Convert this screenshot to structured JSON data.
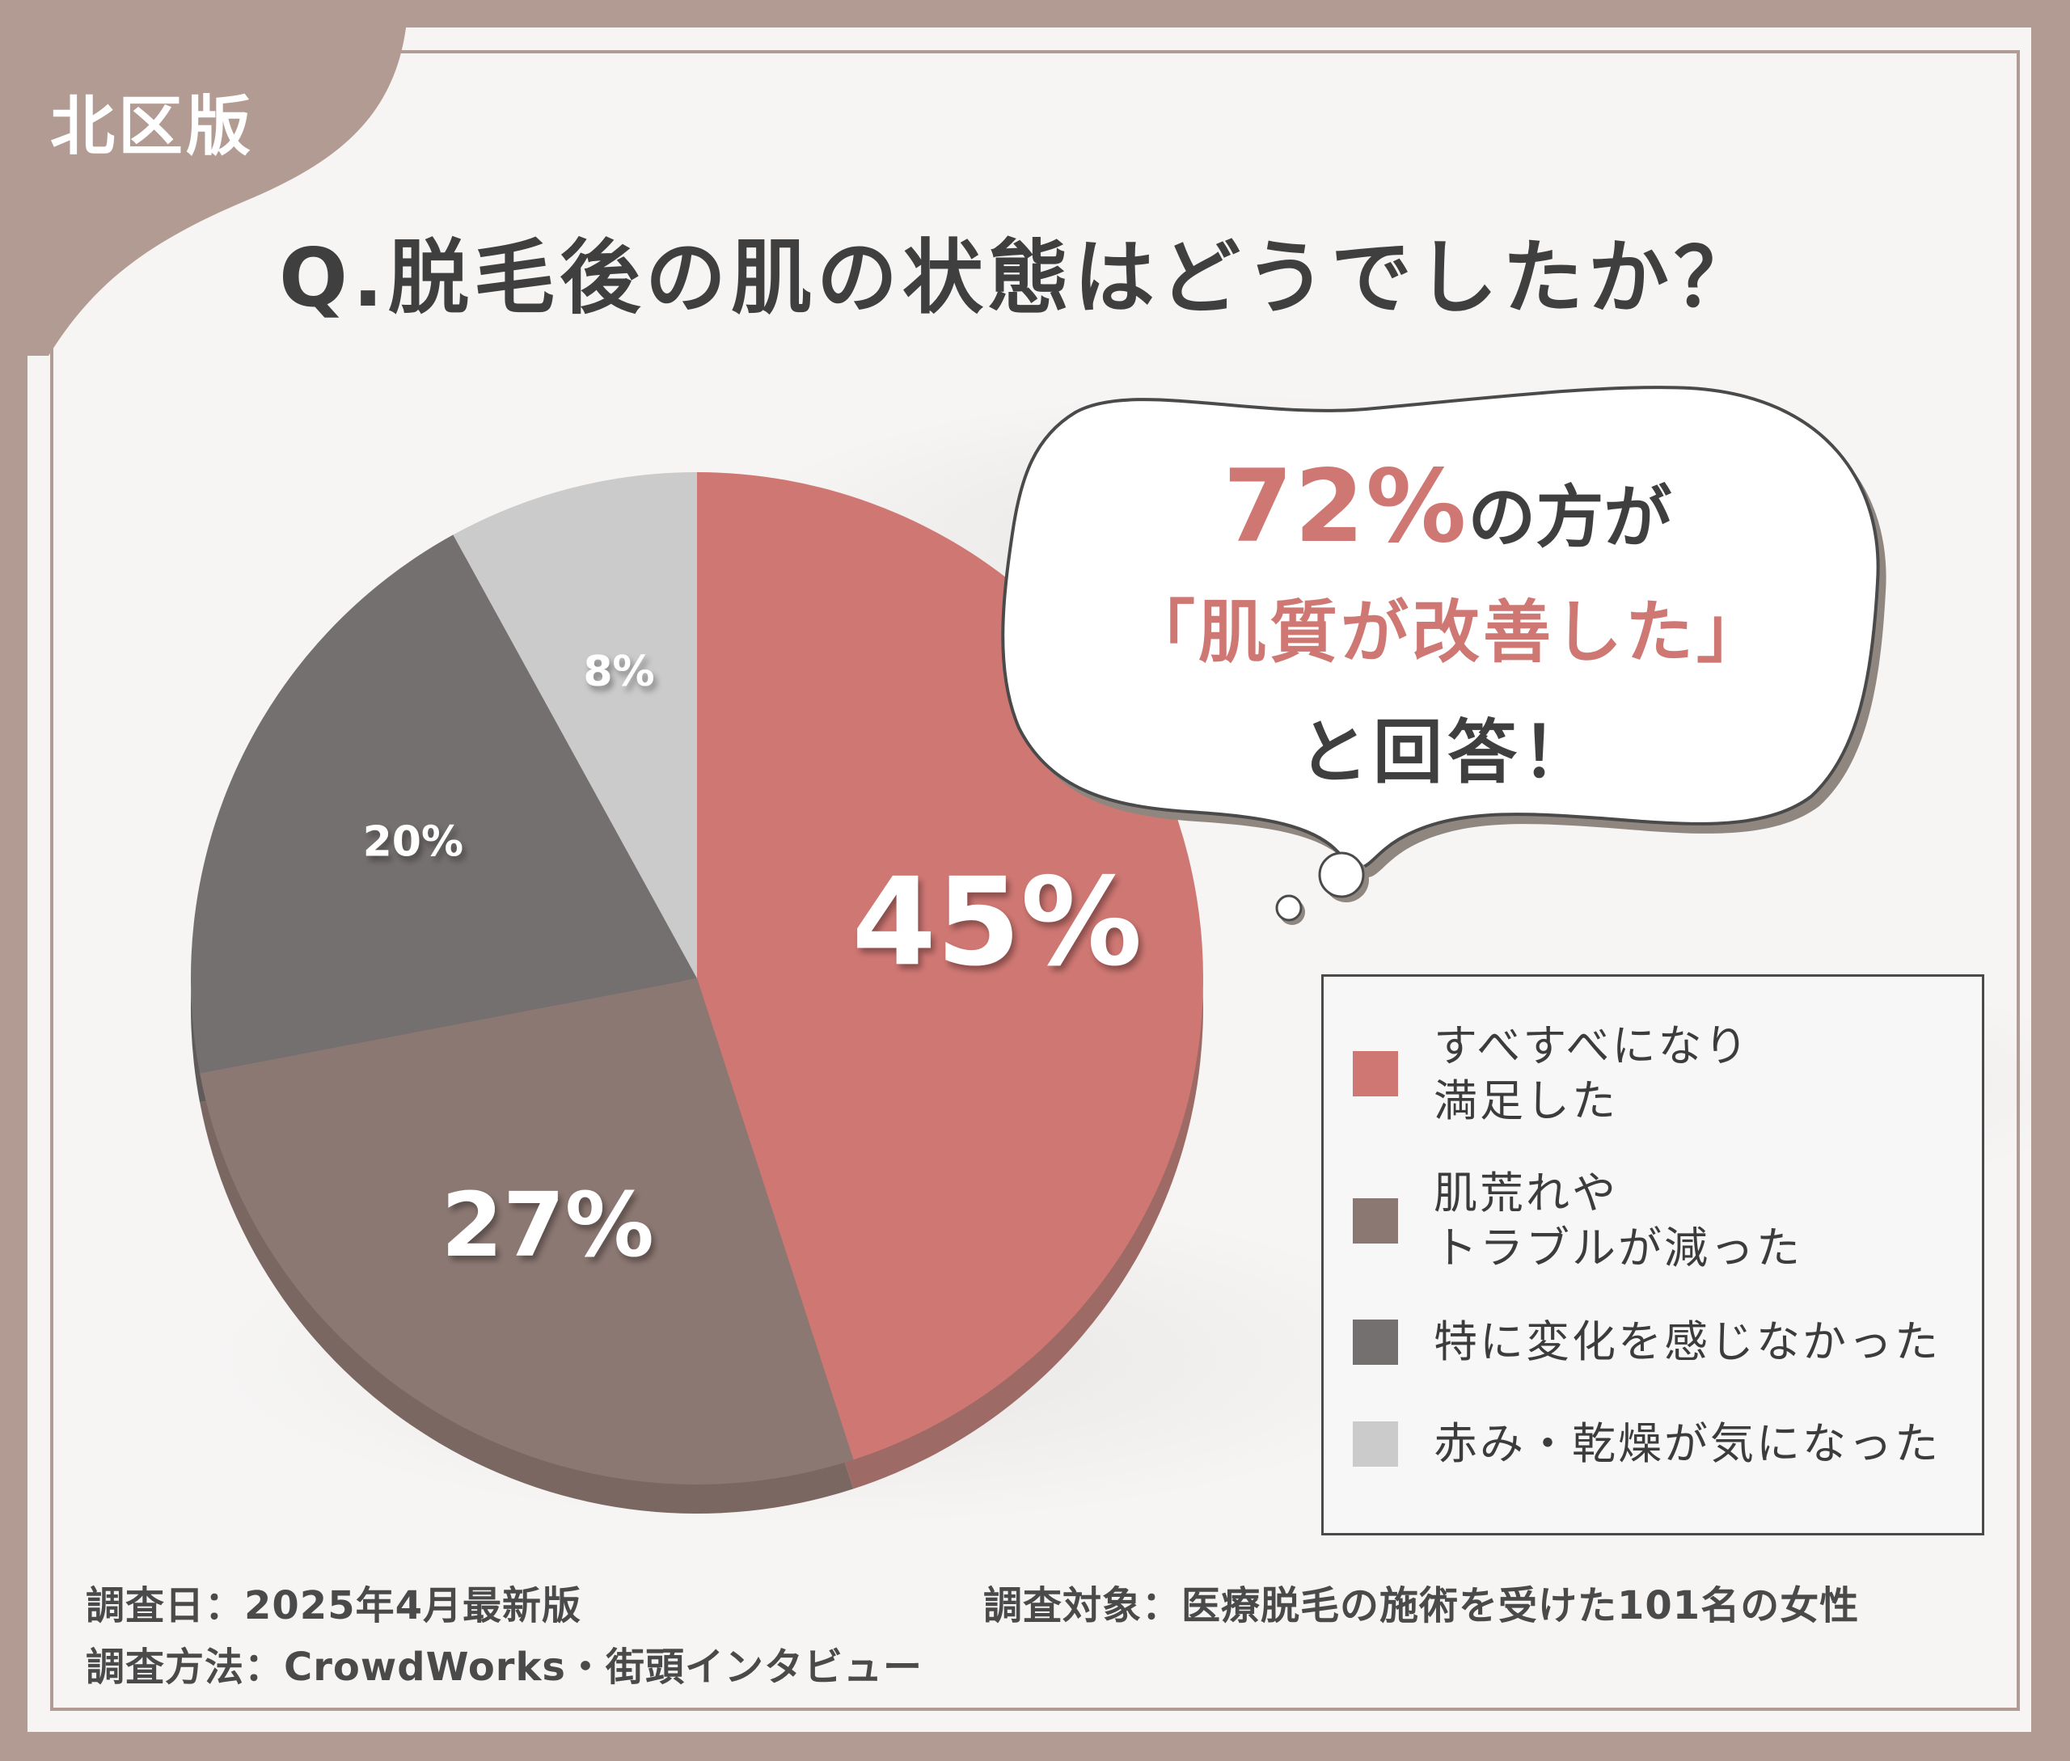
{
  "corner_label": "北区版",
  "question": "Q.脱毛後の肌の状態はどうでしたか？",
  "callout": {
    "line1_value": "72%",
    "line1_rest": "の方が",
    "line2": "「肌質が改善した」",
    "line3": "と回答！"
  },
  "colors": {
    "frame": "#b29b92",
    "accent": "#cf7773",
    "text": "#3f3f3f"
  },
  "chart_data": {
    "type": "pie",
    "title": "Q.脱毛後の肌の状態はどうでしたか？",
    "slices": [
      {
        "label": "すべすべになり\n満足した",
        "value": 45,
        "display": "45%",
        "color": "#cf7773",
        "side": "#9e6a66"
      },
      {
        "label": "肌荒れや\nトラブルが減った",
        "value": 27,
        "display": "27%",
        "color": "#8c7873",
        "side": "#7a6761"
      },
      {
        "label": "特に変化を感じなかった",
        "value": 20,
        "display": "20%",
        "color": "#757070",
        "side": "#5f5b5b"
      },
      {
        "label": "赤み・乾燥が気になった",
        "value": 8,
        "display": "8%",
        "color": "#cbcbcb",
        "side": "#adadad"
      }
    ],
    "legend_position": "right"
  },
  "footer": {
    "date": "調査日：2025年4月最新版",
    "method": "調査方法：CrowdWorks・街頭インタビュー",
    "target": "調査対象：医療脱毛の施術を受けた101名の女性"
  }
}
